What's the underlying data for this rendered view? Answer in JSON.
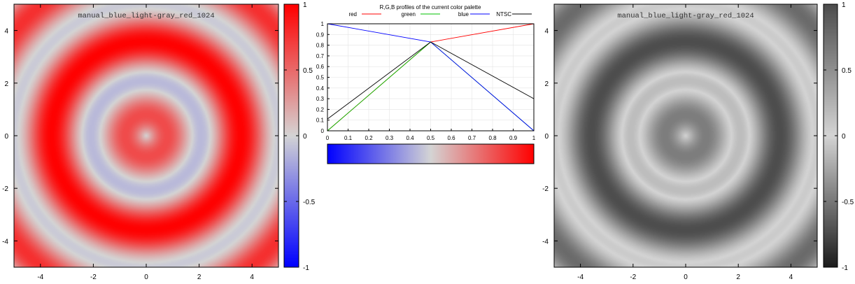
{
  "chart_data": [
    {
      "type": "heatmap",
      "name": "left-map",
      "title": "manual_blue_light-gray_red_1024",
      "function": "sin(1.3*r)*cos(0.9*r) with r = sqrt(x*x+y*y)",
      "xlim": [
        -5,
        5
      ],
      "ylim": [
        -5,
        5
      ],
      "xticks": [
        -4,
        -2,
        0,
        2,
        4
      ],
      "yticks": [
        -4,
        -2,
        0,
        2,
        4
      ],
      "zlim": [
        -1,
        1
      ],
      "colorbar_ticks": [
        1,
        0.5,
        0,
        -0.5,
        -1
      ],
      "colorbar_tick_labels": [
        "1",
        "0.5",
        "0",
        "-0.5",
        "-1"
      ],
      "palette": "color"
    },
    {
      "type": "line",
      "name": "palette-profiles",
      "title": "R,G,B profiles of the current color palette",
      "xlim": [
        0,
        1
      ],
      "ylim": [
        0,
        1
      ],
      "xticks": [
        0,
        0.1,
        0.2,
        0.3,
        0.4,
        0.5,
        0.6,
        0.7,
        0.8,
        0.9,
        1
      ],
      "yticks": [
        0,
        0.1,
        0.2,
        0.3,
        0.4,
        0.5,
        0.6,
        0.7,
        0.8,
        0.9,
        1
      ],
      "legend_position": "top",
      "series": [
        {
          "name": "red",
          "color": "#ff0000",
          "x": [
            0,
            0.5,
            1
          ],
          "y": [
            0,
            0.83,
            1
          ]
        },
        {
          "name": "green",
          "color": "#00c000",
          "x": [
            0,
            0.5,
            1
          ],
          "y": [
            0,
            0.83,
            0
          ]
        },
        {
          "name": "blue",
          "color": "#0000ff",
          "x": [
            0,
            0.5,
            1
          ],
          "y": [
            1,
            0.83,
            0
          ]
        },
        {
          "name": "NTSC",
          "color": "#000000",
          "x": [
            0,
            0.5,
            1
          ],
          "y": [
            0.11,
            0.83,
            0.3
          ]
        }
      ],
      "palette_bar": {
        "stops": [
          "#0000ff",
          "#d4d4d4",
          "#ff0000"
        ]
      }
    },
    {
      "type": "heatmap",
      "name": "right-map",
      "title": "manual_blue_light-gray_red_1024",
      "function": "sin(1.3*r)*cos(0.9*r) with r = sqrt(x*x+y*y)",
      "xlim": [
        -5,
        5
      ],
      "ylim": [
        -5,
        5
      ],
      "xticks": [
        -4,
        -2,
        0,
        2,
        4
      ],
      "yticks": [
        -4,
        -2,
        0,
        2,
        4
      ],
      "zlim": [
        -1,
        1
      ],
      "colorbar_ticks": [
        1,
        0.5,
        0,
        -0.5,
        -1
      ],
      "colorbar_tick_labels": [
        "1",
        "0.5",
        "0",
        "-0.5",
        "-1"
      ],
      "palette": "gray"
    }
  ]
}
